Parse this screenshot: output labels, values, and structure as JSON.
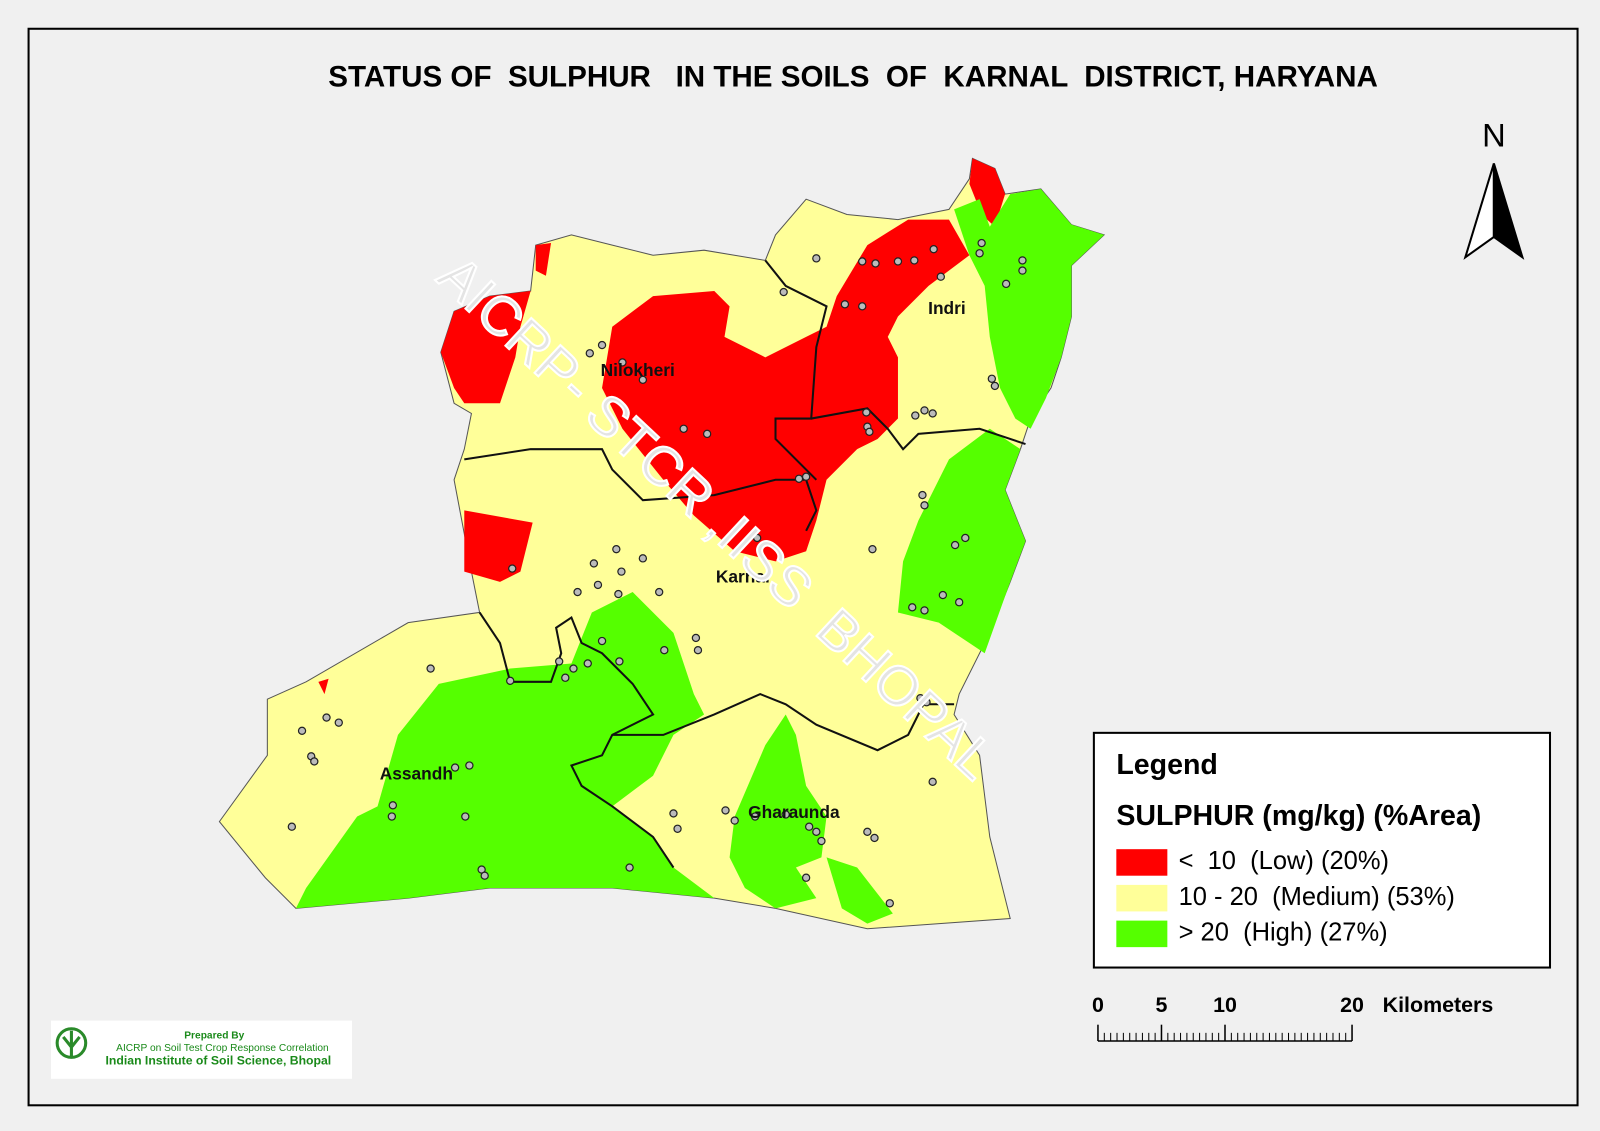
{
  "title": "STATUS OF  SULPHUR   IN THE SOILS  OF  KARNAL  DISTRICT, HARYANA",
  "north": "N",
  "places": [
    "Nilokheri",
    "Indri",
    "Karnal",
    "Assandh",
    "Gharaunda"
  ],
  "legend": {
    "title": "Legend",
    "subtitle": "SULPHUR (mg/kg) (%Area)",
    "items": [
      {
        "label": "<  10  (Low) (20%)",
        "color": "#ff0000"
      },
      {
        "label": "10 - 20  (Medium) (53%)",
        "color": "#ffff99"
      },
      {
        "label": "> 20  (High) (27%)",
        "color": "#55ff00"
      }
    ]
  },
  "scale_bar": {
    "ticks": [
      0,
      5,
      10,
      20
    ],
    "unit": "Kilometers"
  },
  "watermark": "AICRP- STCR ,IISS  BHOPAL",
  "footer": {
    "line1": "Prepared By",
    "line2": "AICRP on Soil Test Crop Response Correlation",
    "line3": "Indian Institute of Soil Science, Bhopal"
  }
}
